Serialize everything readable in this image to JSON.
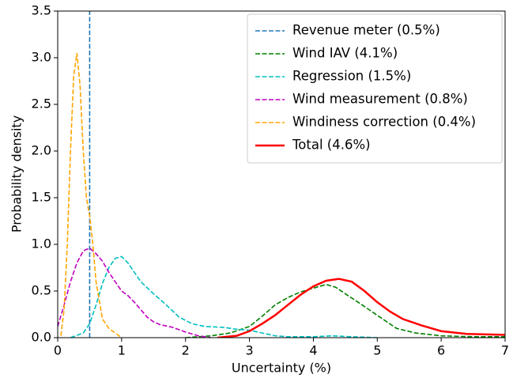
{
  "chart_data": {
    "type": "line",
    "xlabel": "Uncertainty (%)",
    "ylabel": "Probability density",
    "xlim": [
      0,
      7
    ],
    "ylim": [
      0,
      3.5
    ],
    "xticks": [
      0,
      1,
      2,
      3,
      4,
      5,
      6,
      7
    ],
    "yticks": [
      {
        "value": 0,
        "label": "0.0"
      },
      {
        "value": 0.5,
        "label": "0.5"
      },
      {
        "value": 1,
        "label": "1.0"
      },
      {
        "value": 1.5,
        "label": "1.5"
      },
      {
        "value": 2,
        "label": "2.0"
      },
      {
        "value": 2.5,
        "label": "2.5"
      },
      {
        "value": 3,
        "label": "3.0"
      },
      {
        "value": 3.5,
        "label": "3.5"
      }
    ],
    "legend": "upper right",
    "series": [
      {
        "name": "Revenue meter (0.5%)",
        "color": "#1f77b4",
        "dashed": true,
        "x": [
          0.5,
          0.5
        ],
        "values": [
          0,
          3.5
        ]
      },
      {
        "name": "Wind IAV (4.1%)",
        "color": "#008000",
        "dashed": true,
        "x": [
          2.0,
          2.4,
          2.7,
          3.0,
          3.2,
          3.4,
          3.6,
          3.8,
          4.0,
          4.2,
          4.35,
          4.5,
          4.7,
          5.0,
          5.3,
          5.6,
          6.0,
          6.5,
          7.0
        ],
        "values": [
          0.0,
          0.02,
          0.05,
          0.12,
          0.23,
          0.35,
          0.43,
          0.49,
          0.53,
          0.57,
          0.54,
          0.47,
          0.38,
          0.24,
          0.1,
          0.05,
          0.02,
          0.01,
          0.01
        ]
      },
      {
        "name": "Regression (1.5%)",
        "color": "#00bfbf",
        "dashed": true,
        "x": [
          0.2,
          0.4,
          0.5,
          0.6,
          0.7,
          0.8,
          0.9,
          1.0,
          1.1,
          1.2,
          1.3,
          1.5,
          1.7,
          1.9,
          2.1,
          2.3,
          2.6,
          2.8,
          3.0,
          3.2,
          3.4,
          3.6,
          4.0,
          4.3,
          4.6,
          5.0
        ],
        "values": [
          0.0,
          0.05,
          0.15,
          0.35,
          0.58,
          0.75,
          0.85,
          0.87,
          0.8,
          0.7,
          0.6,
          0.47,
          0.35,
          0.22,
          0.15,
          0.12,
          0.11,
          0.09,
          0.08,
          0.05,
          0.02,
          0.01,
          0.01,
          0.02,
          0.01,
          0.0
        ]
      },
      {
        "name": "Wind measurement (0.8%)",
        "color": "#bf00bf",
        "dashed": true,
        "x": [
          0.0,
          0.1,
          0.2,
          0.3,
          0.4,
          0.5,
          0.6,
          0.7,
          0.8,
          0.9,
          1.0,
          1.1,
          1.2,
          1.3,
          1.4,
          1.5,
          1.6,
          1.8,
          2.0,
          2.2,
          2.4
        ],
        "values": [
          0.12,
          0.35,
          0.6,
          0.8,
          0.93,
          0.96,
          0.9,
          0.82,
          0.7,
          0.6,
          0.5,
          0.45,
          0.38,
          0.3,
          0.22,
          0.17,
          0.14,
          0.11,
          0.06,
          0.02,
          0.0
        ]
      },
      {
        "name": "Windiness correction (0.4%)",
        "color": "#ffa500",
        "dashed": true,
        "x": [
          0.05,
          0.1,
          0.15,
          0.2,
          0.25,
          0.3,
          0.35,
          0.4,
          0.45,
          0.5,
          0.55,
          0.6,
          0.7,
          0.8,
          0.9,
          1.0
        ],
        "values": [
          0.02,
          0.3,
          1.0,
          2.0,
          2.8,
          3.05,
          2.7,
          2.0,
          1.5,
          1.3,
          1.0,
          0.6,
          0.2,
          0.1,
          0.05,
          0.0
        ]
      },
      {
        "name": "Total (4.6%)",
        "color": "#ff0000",
        "dashed": false,
        "x": [
          2.5,
          2.8,
          3.0,
          3.2,
          3.4,
          3.6,
          3.8,
          4.0,
          4.2,
          4.4,
          4.6,
          4.8,
          5.0,
          5.2,
          5.4,
          5.7,
          6.0,
          6.4,
          7.0
        ],
        "values": [
          0.0,
          0.02,
          0.07,
          0.15,
          0.24,
          0.35,
          0.46,
          0.55,
          0.61,
          0.63,
          0.6,
          0.5,
          0.38,
          0.28,
          0.2,
          0.13,
          0.07,
          0.04,
          0.03
        ]
      }
    ]
  }
}
